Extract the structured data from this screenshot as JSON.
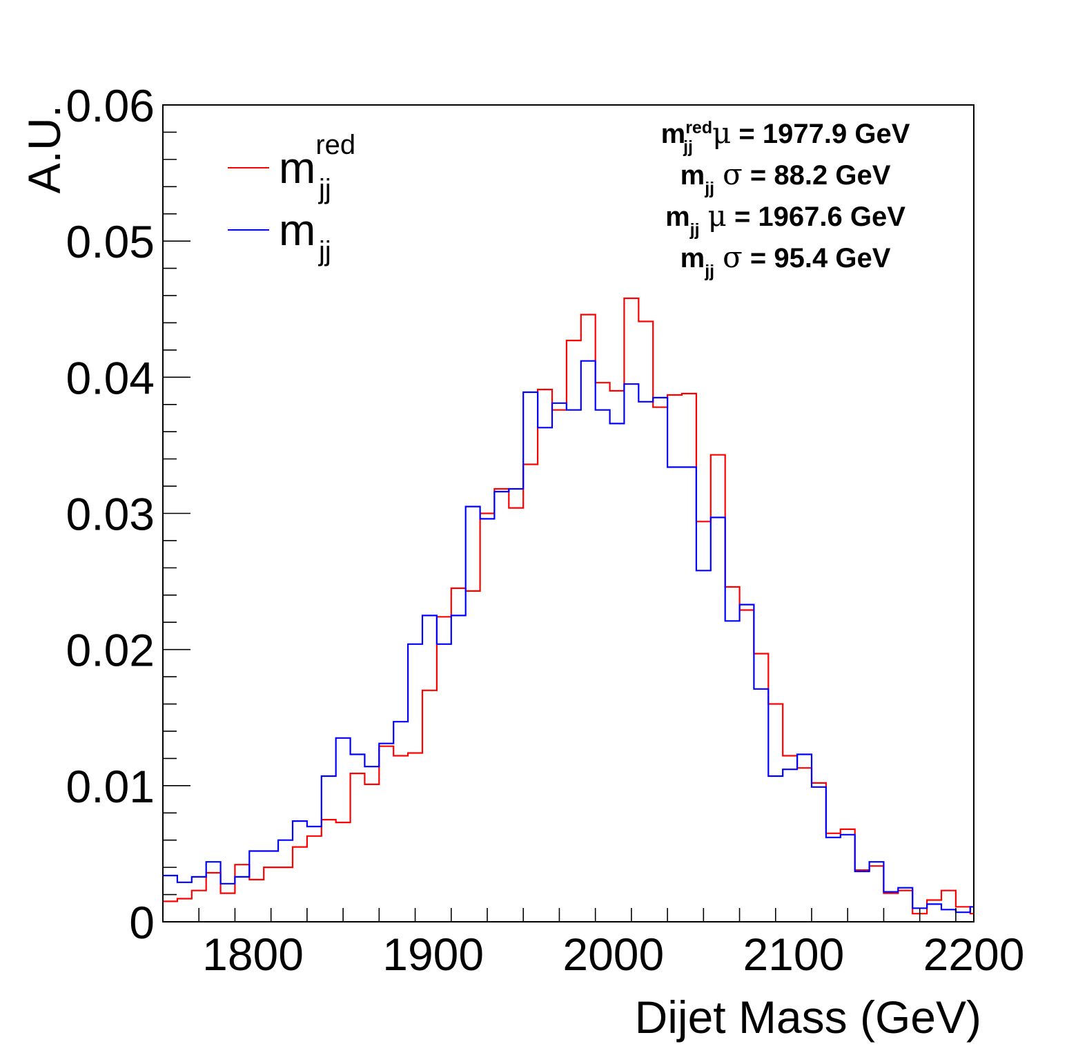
{
  "chart_data": {
    "type": "histogram",
    "xlabel": "Dijet Mass (GeV)",
    "ylabel": "A.U.",
    "xlim": [
      1750,
      2200
    ],
    "ylim": [
      0,
      0.06
    ],
    "bin_width": 8,
    "x_tick_labels": [
      "1800",
      "1900",
      "2000",
      "2100",
      "2200"
    ],
    "y_tick_labels": [
      "0",
      "0.01",
      "0.02",
      "0.03",
      "0.04",
      "0.05",
      "0.06"
    ],
    "legend_placement": "top-left",
    "colors": {
      "red_series": "#ff0000",
      "blue_series": "#0000ff"
    },
    "series": [
      {
        "name": "m_jj^red",
        "legend_main": "m",
        "legend_sub": "jj",
        "legend_sup": "red",
        "color": "#ff0000",
        "values": [
          0.0015,
          0.0017,
          0.0023,
          0.0036,
          0.0021,
          0.0042,
          0.0031,
          0.004,
          0.004,
          0.0055,
          0.0063,
          0.0075,
          0.0073,
          0.0109,
          0.0101,
          0.0129,
          0.0122,
          0.0124,
          0.017,
          0.0224,
          0.0245,
          0.0243,
          0.03,
          0.0318,
          0.0304,
          0.0336,
          0.0391,
          0.0376,
          0.0427,
          0.0446,
          0.0396,
          0.039,
          0.0458,
          0.0441,
          0.0378,
          0.0387,
          0.0388,
          0.0294,
          0.0343,
          0.0246,
          0.0229,
          0.0197,
          0.016,
          0.0122,
          0.0113,
          0.0102,
          0.0065,
          0.0068,
          0.0038,
          0.0041,
          0.0021,
          0.0023,
          0.0006,
          0.0016,
          0.0023,
          0.0011,
          0.0006
        ]
      },
      {
        "name": "m_jj",
        "legend_main": "m",
        "legend_sub": "jj",
        "color": "#0000ff",
        "values": [
          0.0034,
          0.0029,
          0.0033,
          0.0044,
          0.0028,
          0.0033,
          0.0052,
          0.0052,
          0.006,
          0.0074,
          0.007,
          0.0107,
          0.0135,
          0.0123,
          0.0114,
          0.0131,
          0.0147,
          0.0204,
          0.0225,
          0.0204,
          0.0225,
          0.0305,
          0.0296,
          0.0316,
          0.0318,
          0.0389,
          0.0363,
          0.0381,
          0.0376,
          0.0412,
          0.0376,
          0.0366,
          0.0395,
          0.0382,
          0.0385,
          0.0334,
          0.0334,
          0.0258,
          0.0297,
          0.0221,
          0.0233,
          0.0171,
          0.0107,
          0.0112,
          0.0123,
          0.0099,
          0.0062,
          0.0064,
          0.0037,
          0.0044,
          0.0022,
          0.0025,
          0.001,
          0.0013,
          0.0009,
          0.0007,
          0.0011
        ]
      }
    ],
    "annotations": [
      {
        "main": "m",
        "sub": "jj",
        "sup": "red",
        "greek": "μ",
        "text": " = 1977.9 GeV"
      },
      {
        "main": "m",
        "sub": "jj",
        "sup": "",
        "greek": "σ",
        "text": " = 88.2 GeV"
      },
      {
        "main": "m",
        "sub": "jj",
        "sup": "",
        "greek": "μ",
        "text": " = 1967.6 GeV"
      },
      {
        "main": "m",
        "sub": "jj",
        "sup": "",
        "greek": "σ",
        "text": " = 95.4 GeV"
      }
    ]
  }
}
